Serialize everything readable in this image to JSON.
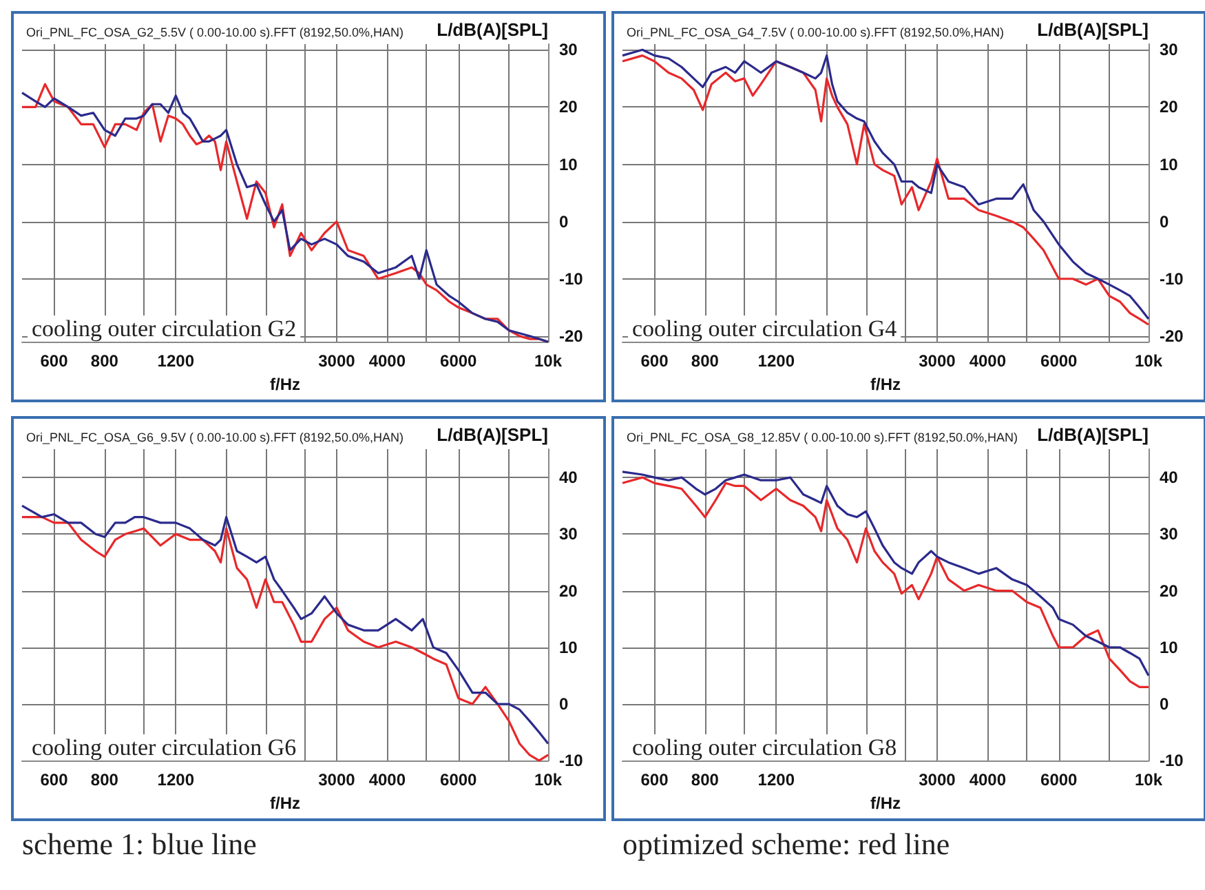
{
  "chart_data": [
    {
      "type": "line",
      "title": "Ori_PNL_FC_OSA_G2_5.5V ( 0.00-10.00 s).FFT (8192,50.0%,HAN)",
      "xlabel": "f/Hz",
      "ylabel": "L/dB(A)[SPL]",
      "annotations": [
        "cooling outer circulation G2"
      ],
      "log": "x",
      "grid": true,
      "xlim": [
        500,
        10000
      ],
      "xticks": [
        600,
        800,
        {
          "value": 1000,
          "label": null
        },
        1200,
        {
          "value": 1600,
          "label": null
        },
        {
          "value": 2000,
          "label": null
        },
        {
          "value": 2500,
          "label": null
        },
        3000,
        4000,
        {
          "value": 5000,
          "label": null
        },
        6000,
        {
          "value": 8000,
          "label": null
        },
        {
          "value": 10000,
          "label": "10k"
        }
      ],
      "ylim": [
        -21,
        31
      ],
      "yticks": [
        -20,
        -10,
        0,
        10,
        20,
        30
      ],
      "x": [
        500,
        540,
        570,
        600,
        650,
        700,
        750,
        800,
        850,
        900,
        960,
        1000,
        1050,
        1100,
        1150,
        1200,
        1250,
        1300,
        1350,
        1400,
        1450,
        1500,
        1550,
        1600,
        1700,
        1800,
        1900,
        2000,
        2100,
        2200,
        2300,
        2450,
        2600,
        2800,
        3000,
        3200,
        3500,
        3800,
        4200,
        4600,
        4800,
        5000,
        5300,
        5700,
        6000,
        6500,
        7000,
        7500,
        8000,
        8500,
        9000,
        9500,
        10000
      ],
      "series": [
        {
          "color": "#2b2a8c",
          "values": [
            22.5,
            21,
            20,
            21.5,
            20,
            18.5,
            19,
            16,
            15,
            18,
            18,
            18.5,
            20.5,
            20.5,
            19,
            22,
            19,
            18,
            16,
            14,
            14,
            14.5,
            15,
            16,
            10,
            6,
            6.5,
            3,
            0,
            2,
            -5,
            -3,
            -4,
            -3,
            -4,
            -6,
            -7,
            -9,
            -8,
            -6,
            -10,
            -5,
            -11,
            -13,
            -14,
            -16,
            -17,
            -17.5,
            -19,
            -19.5,
            -20,
            -20.5,
            -21
          ]
        },
        {
          "color": "#e8282a",
          "values": [
            20,
            20,
            24,
            21,
            20,
            17,
            17,
            13,
            17,
            17,
            16,
            19,
            20.5,
            14,
            18.5,
            18,
            17,
            15,
            13.5,
            14,
            15,
            14,
            9,
            14,
            7,
            0.5,
            7,
            5,
            -1,
            3,
            -6,
            -2,
            -5,
            -2,
            0,
            -5,
            -6,
            -10,
            -9,
            -8,
            -9,
            -11,
            -12,
            -14,
            -15,
            -16,
            -17,
            -17,
            -19,
            -20,
            -20.5,
            -20.5,
            -21
          ]
        }
      ]
    },
    {
      "type": "line",
      "title": "Ori_PNL_FC_OSA_G4_7.5V ( 0.00-10.00 s).FFT (8192,50.0%,HAN)",
      "xlabel": "f/Hz",
      "ylabel": "L/dB(A)[SPL]",
      "annotations": [
        "cooling outer circulation G4"
      ],
      "log": "x",
      "grid": true,
      "xlim": [
        500,
        10000
      ],
      "xticks": [
        600,
        800,
        {
          "value": 1000,
          "label": null
        },
        1200,
        {
          "value": 1600,
          "label": null
        },
        {
          "value": 2000,
          "label": null
        },
        {
          "value": 2500,
          "label": null
        },
        3000,
        4000,
        {
          "value": 5000,
          "label": null
        },
        6000,
        {
          "value": 8000,
          "label": null
        },
        {
          "value": 10000,
          "label": "10k"
        }
      ],
      "ylim": [
        -21,
        31
      ],
      "yticks": [
        -20,
        -10,
        0,
        10,
        20,
        30
      ],
      "x": [
        500,
        560,
        600,
        650,
        700,
        750,
        790,
        830,
        900,
        950,
        1000,
        1050,
        1100,
        1200,
        1300,
        1400,
        1500,
        1550,
        1600,
        1650,
        1700,
        1800,
        1900,
        1980,
        2100,
        2200,
        2350,
        2450,
        2600,
        2700,
        2900,
        3000,
        3200,
        3500,
        3800,
        4200,
        4600,
        4900,
        5200,
        5500,
        6000,
        6500,
        7000,
        7500,
        8000,
        8500,
        9000,
        9500,
        10000
      ],
      "series": [
        {
          "color": "#2b2a8c",
          "values": [
            29,
            30,
            29,
            28.5,
            27,
            25,
            23.5,
            26,
            27,
            26,
            28,
            27,
            26,
            28,
            27,
            26,
            25,
            26,
            29,
            24,
            21,
            19,
            18,
            17.5,
            14,
            12,
            10,
            7,
            7,
            6,
            5,
            10,
            7,
            6,
            3,
            4,
            4,
            6.5,
            2,
            0,
            -4,
            -7,
            -9,
            -10,
            -11,
            -12,
            -13,
            -15,
            -17
          ]
        },
        {
          "color": "#e8282a",
          "values": [
            28,
            29,
            28,
            26,
            25,
            23,
            19.5,
            24,
            26,
            24.5,
            25,
            22,
            24,
            28,
            27,
            26,
            23,
            17.5,
            25,
            22,
            20,
            17,
            10,
            17,
            10,
            9,
            8,
            3,
            6,
            2,
            7,
            11,
            4,
            4,
            2,
            1,
            0,
            -1,
            -3,
            -5,
            -10,
            -10,
            -11,
            -10,
            -13,
            -14,
            -16,
            -17,
            -18
          ]
        }
      ]
    },
    {
      "type": "line",
      "title": "Ori_PNL_FC_OSA_G6_9.5V ( 0.00-10.00 s).FFT (8192,50.0%,HAN)",
      "xlabel": "f/Hz",
      "ylabel": "L/dB(A)[SPL]",
      "annotations": [
        "cooling outer circulation G6",
        "scheme 1: blue line"
      ],
      "log": "x",
      "grid": true,
      "xlim": [
        500,
        10000
      ],
      "xticks": [
        600,
        800,
        {
          "value": 1000,
          "label": null
        },
        1200,
        {
          "value": 1600,
          "label": null
        },
        {
          "value": 2000,
          "label": null
        },
        {
          "value": 2500,
          "label": null
        },
        3000,
        4000,
        {
          "value": 5000,
          "label": null
        },
        6000,
        {
          "value": 8000,
          "label": null
        },
        {
          "value": 10000,
          "label": "10k"
        }
      ],
      "ylim": [
        -10,
        45
      ],
      "yticks": [
        -10,
        0,
        10,
        20,
        30,
        40
      ],
      "x": [
        500,
        560,
        600,
        650,
        700,
        760,
        800,
        850,
        900,
        950,
        1000,
        1100,
        1200,
        1300,
        1400,
        1500,
        1550,
        1600,
        1700,
        1800,
        1900,
        2000,
        2100,
        2200,
        2350,
        2450,
        2600,
        2800,
        3000,
        3200,
        3500,
        3800,
        4200,
        4600,
        4900,
        5200,
        5600,
        6000,
        6500,
        7000,
        7500,
        8000,
        8500,
        9000,
        9500,
        10000
      ],
      "series": [
        {
          "color": "#2b2a8c",
          "values": [
            35,
            33,
            33.5,
            32,
            32,
            30,
            29.5,
            32,
            32,
            33,
            33,
            32,
            32,
            31,
            29,
            28,
            29,
            33,
            27,
            26,
            25,
            26,
            22,
            20,
            17,
            15,
            16,
            19,
            16,
            14,
            13,
            13,
            15,
            13,
            15,
            10,
            9,
            6,
            2,
            2,
            0,
            0,
            -1,
            -3,
            -5,
            -7
          ]
        },
        {
          "color": "#e8282a",
          "values": [
            33,
            33,
            32,
            32,
            29,
            27,
            26,
            29,
            30,
            30.5,
            31,
            28,
            30,
            29,
            29,
            27,
            25,
            31,
            24,
            22,
            17,
            22,
            18,
            18,
            14,
            11,
            11,
            15,
            17,
            13,
            11,
            10,
            11,
            10,
            9,
            8,
            7,
            1,
            0,
            3,
            0,
            -3,
            -7,
            -9,
            -10,
            -9
          ]
        }
      ]
    },
    {
      "type": "line",
      "title": "Ori_PNL_FC_OSA_G8_12.85V ( 0.00-10.00 s).FFT (8192,50.0%,HAN)",
      "xlabel": "f/Hz",
      "ylabel": "L/dB(A)[SPL]",
      "annotations": [
        "cooling outer circulation G8",
        "optimized scheme: red line"
      ],
      "log": "x",
      "grid": true,
      "xlim": [
        500,
        10000
      ],
      "xticks": [
        600,
        800,
        {
          "value": 1000,
          "label": null
        },
        1200,
        {
          "value": 1600,
          "label": null
        },
        {
          "value": 2000,
          "label": null
        },
        {
          "value": 2500,
          "label": null
        },
        3000,
        4000,
        {
          "value": 5000,
          "label": null
        },
        6000,
        {
          "value": 8000,
          "label": null
        },
        {
          "value": 10000,
          "label": "10k"
        }
      ],
      "ylim": [
        -10,
        45
      ],
      "yticks": [
        -10,
        0,
        10,
        20,
        30,
        40
      ],
      "x": [
        500,
        560,
        600,
        650,
        700,
        760,
        800,
        850,
        900,
        950,
        1000,
        1100,
        1200,
        1300,
        1400,
        1500,
        1550,
        1600,
        1700,
        1800,
        1900,
        2000,
        2100,
        2200,
        2350,
        2450,
        2600,
        2700,
        2900,
        3000,
        3200,
        3500,
        3800,
        4200,
        4600,
        5000,
        5400,
        5800,
        6000,
        6500,
        7000,
        7500,
        8000,
        8500,
        9000,
        9500,
        10000
      ],
      "series": [
        {
          "color": "#2b2a8c",
          "values": [
            41,
            40.5,
            40,
            39.5,
            40,
            38,
            37,
            38,
            39.5,
            40,
            40.5,
            39.5,
            39.5,
            40,
            37,
            36,
            35.5,
            38.5,
            35,
            33.5,
            33,
            34,
            31,
            28,
            25,
            24,
            23,
            25,
            27,
            26,
            25,
            24,
            23,
            24,
            22,
            21,
            19,
            17,
            15,
            14,
            12,
            11,
            10,
            10,
            9,
            8,
            5
          ]
        },
        {
          "color": "#e8282a",
          "values": [
            39,
            40,
            39,
            38.5,
            38,
            35,
            33,
            36,
            39,
            38.5,
            38.5,
            36,
            38,
            36,
            35,
            33,
            30.5,
            36,
            31,
            29,
            25,
            31,
            27,
            25,
            23,
            19.5,
            21,
            18.5,
            23,
            26,
            22,
            20,
            21,
            20,
            20,
            18,
            17,
            12,
            10,
            10,
            12,
            13,
            8,
            6,
            4,
            3,
            3
          ]
        }
      ]
    }
  ]
}
